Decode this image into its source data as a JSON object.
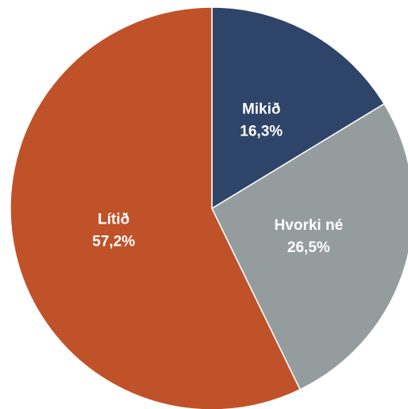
{
  "chart_data": {
    "type": "pie",
    "categories": [
      "Mikið",
      "Hvorki né",
      "Lítið"
    ],
    "values": [
      16.3,
      26.5,
      57.2
    ],
    "value_labels": [
      "16,3%",
      "26,5%",
      "57,2%"
    ],
    "colors": [
      "#2e4468",
      "#959c9e",
      "#c0522a"
    ]
  }
}
